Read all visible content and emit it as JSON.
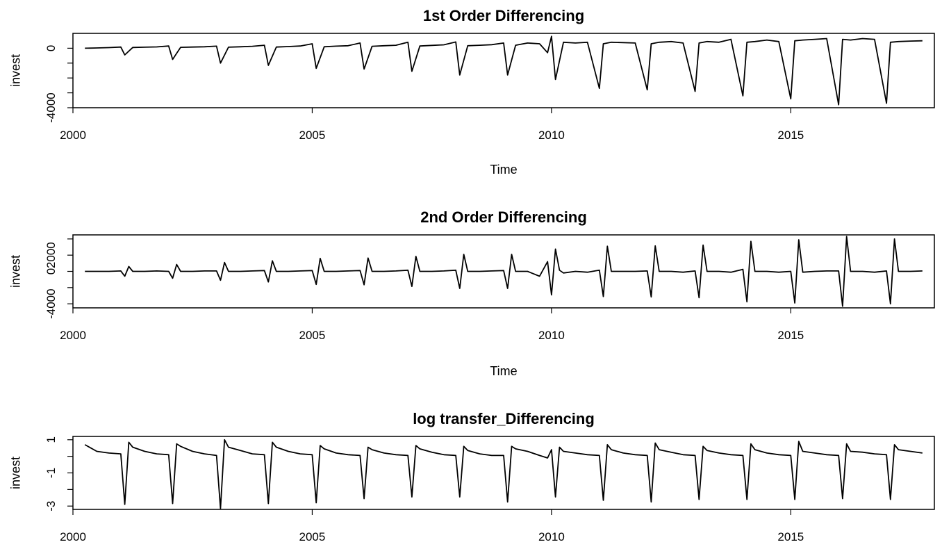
{
  "chart_data": [
    {
      "type": "line",
      "title": "1st Order Differencing",
      "xlabel": "Time",
      "ylabel": "invest",
      "xlim": [
        2000,
        2018
      ],
      "ylim": [
        -4000,
        1000
      ],
      "xticks": [
        2000,
        2005,
        2010,
        2015
      ],
      "xtick_labels": [
        "2000",
        "2005",
        "2010",
        "2015"
      ],
      "yticks": [
        -4000,
        -3000,
        -2000,
        -1000,
        0
      ],
      "ytick_labels": [
        "-4000",
        "",
        "",
        "",
        "0"
      ],
      "x": [
        2000.25,
        2000.5,
        2000.75,
        2001.0,
        2001.083,
        2001.25,
        2001.5,
        2001.75,
        2002.0,
        2002.083,
        2002.25,
        2002.5,
        2002.75,
        2003.0,
        2003.083,
        2003.25,
        2003.5,
        2003.75,
        2004.0,
        2004.083,
        2004.25,
        2004.5,
        2004.75,
        2005.0,
        2005.083,
        2005.25,
        2005.5,
        2005.75,
        2006.0,
        2006.083,
        2006.25,
        2006.5,
        2006.75,
        2007.0,
        2007.083,
        2007.25,
        2007.5,
        2007.75,
        2008.0,
        2008.083,
        2008.25,
        2008.5,
        2008.75,
        2009.0,
        2009.083,
        2009.25,
        2009.5,
        2009.75,
        2009.917,
        2010.0,
        2010.083,
        2010.25,
        2010.5,
        2010.75,
        2011.0,
        2011.083,
        2011.25,
        2011.5,
        2011.75,
        2012.0,
        2012.083,
        2012.25,
        2012.5,
        2012.75,
        2013.0,
        2013.083,
        2013.25,
        2013.5,
        2013.75,
        2014.0,
        2014.083,
        2014.25,
        2014.5,
        2014.75,
        2015.0,
        2015.083,
        2015.25,
        2015.5,
        2015.75,
        2016.0,
        2016.083,
        2016.25,
        2016.5,
        2016.75,
        2017.0,
        2017.083,
        2017.25,
        2017.5,
        2017.75
      ],
      "y": [
        0,
        20,
        40,
        80,
        -450,
        50,
        70,
        90,
        150,
        -750,
        60,
        80,
        100,
        140,
        -1000,
        70,
        100,
        130,
        200,
        -1150,
        80,
        110,
        150,
        300,
        -1350,
        100,
        140,
        170,
        350,
        -1400,
        130,
        170,
        200,
        400,
        -1550,
        150,
        190,
        230,
        420,
        -1800,
        170,
        200,
        240,
        350,
        -1800,
        200,
        350,
        300,
        -300,
        800,
        -2100,
        400,
        350,
        400,
        -2700,
        300,
        400,
        380,
        350,
        -2800,
        300,
        400,
        450,
        350,
        -2900,
        350,
        450,
        400,
        600,
        -3200,
        400,
        450,
        550,
        450,
        -3400,
        500,
        550,
        600,
        650,
        -3800,
        600,
        550,
        650,
        600,
        -3700,
        400,
        450,
        480,
        500
      ]
    },
    {
      "type": "line",
      "title": "2nd Order Differencing",
      "xlabel": "Time",
      "ylabel": "invest",
      "xlim": [
        2000,
        2018
      ],
      "ylim": [
        -4500,
        4500
      ],
      "xticks": [
        2000,
        2005,
        2010,
        2015
      ],
      "xtick_labels": [
        "2000",
        "2005",
        "2010",
        "2015"
      ],
      "yticks": [
        -4000,
        -2000,
        0,
        2000,
        4000
      ],
      "ytick_labels": [
        "-4000",
        "",
        "0",
        "2000",
        ""
      ],
      "x": [
        2000.25,
        2000.5,
        2000.75,
        2001.0,
        2001.083,
        2001.167,
        2001.25,
        2001.5,
        2001.75,
        2002.0,
        2002.083,
        2002.167,
        2002.25,
        2002.5,
        2002.75,
        2003.0,
        2003.083,
        2003.167,
        2003.25,
        2003.5,
        2003.75,
        2004.0,
        2004.083,
        2004.167,
        2004.25,
        2004.5,
        2004.75,
        2005.0,
        2005.083,
        2005.167,
        2005.25,
        2005.5,
        2005.75,
        2006.0,
        2006.083,
        2006.167,
        2006.25,
        2006.5,
        2006.75,
        2007.0,
        2007.083,
        2007.167,
        2007.25,
        2007.5,
        2007.75,
        2008.0,
        2008.083,
        2008.167,
        2008.25,
        2008.5,
        2008.75,
        2009.0,
        2009.083,
        2009.167,
        2009.25,
        2009.5,
        2009.75,
        2009.917,
        2010.0,
        2010.083,
        2010.167,
        2010.25,
        2010.5,
        2010.75,
        2011.0,
        2011.083,
        2011.167,
        2011.25,
        2011.5,
        2011.75,
        2012.0,
        2012.083,
        2012.167,
        2012.25,
        2012.5,
        2012.75,
        2013.0,
        2013.083,
        2013.167,
        2013.25,
        2013.5,
        2013.75,
        2014.0,
        2014.083,
        2014.167,
        2014.25,
        2014.5,
        2014.75,
        2015.0,
        2015.083,
        2015.167,
        2015.25,
        2015.5,
        2015.75,
        2016.0,
        2016.083,
        2016.167,
        2016.25,
        2016.5,
        2016.75,
        2017.0,
        2017.083,
        2017.167,
        2017.25,
        2017.5,
        2017.75
      ],
      "y": [
        0,
        0,
        0,
        50,
        -600,
        600,
        0,
        0,
        50,
        0,
        -850,
        850,
        0,
        0,
        50,
        50,
        -1100,
        1100,
        0,
        0,
        50,
        100,
        -1300,
        1300,
        0,
        0,
        50,
        100,
        -1600,
        1600,
        0,
        0,
        50,
        100,
        -1650,
        1650,
        0,
        0,
        50,
        150,
        -1850,
        1850,
        0,
        0,
        50,
        150,
        -2100,
        2100,
        0,
        0,
        50,
        100,
        -2100,
        2100,
        0,
        0,
        -600,
        1200,
        -2900,
        2750,
        150,
        -200,
        0,
        -100,
        150,
        -3100,
        3100,
        0,
        0,
        0,
        50,
        -3150,
        3150,
        0,
        0,
        -100,
        50,
        -3250,
        3250,
        0,
        0,
        -100,
        250,
        -3750,
        3700,
        0,
        0,
        -100,
        0,
        -3900,
        3900,
        -100,
        0,
        50,
        50,
        -4300,
        4300,
        0,
        0,
        -100,
        50,
        -4000,
        4000,
        0,
        0,
        50
      ]
    },
    {
      "type": "line",
      "title": "log transfer_Differencing",
      "xlabel": "",
      "ylabel": "invest",
      "xlim": [
        2000,
        2018
      ],
      "ylim": [
        -3.2,
        1.2
      ],
      "xticks": [
        2000,
        2005,
        2010,
        2015
      ],
      "xtick_labels": [
        "2000",
        "2005",
        "2010",
        "2015"
      ],
      "yticks": [
        -3,
        -2,
        -1,
        0,
        1
      ],
      "ytick_labels": [
        "-3",
        "",
        "-1",
        "",
        "1"
      ],
      "x": [
        2000.25,
        2000.5,
        2000.75,
        2001.0,
        2001.083,
        2001.167,
        2001.25,
        2001.5,
        2001.75,
        2002.0,
        2002.083,
        2002.167,
        2002.25,
        2002.5,
        2002.75,
        2003.0,
        2003.083,
        2003.167,
        2003.25,
        2003.5,
        2003.75,
        2004.0,
        2004.083,
        2004.167,
        2004.25,
        2004.5,
        2004.75,
        2005.0,
        2005.083,
        2005.167,
        2005.25,
        2005.5,
        2005.75,
        2006.0,
        2006.083,
        2006.167,
        2006.25,
        2006.5,
        2006.75,
        2007.0,
        2007.083,
        2007.167,
        2007.25,
        2007.5,
        2007.75,
        2008.0,
        2008.083,
        2008.167,
        2008.25,
        2008.5,
        2008.75,
        2009.0,
        2009.083,
        2009.167,
        2009.25,
        2009.5,
        2009.75,
        2009.917,
        2010.0,
        2010.083,
        2010.167,
        2010.25,
        2010.5,
        2010.75,
        2011.0,
        2011.083,
        2011.167,
        2011.25,
        2011.5,
        2011.75,
        2012.0,
        2012.083,
        2012.167,
        2012.25,
        2012.5,
        2012.75,
        2013.0,
        2013.083,
        2013.167,
        2013.25,
        2013.5,
        2013.75,
        2014.0,
        2014.083,
        2014.167,
        2014.25,
        2014.5,
        2014.75,
        2015.0,
        2015.083,
        2015.167,
        2015.25,
        2015.5,
        2015.75,
        2016.0,
        2016.083,
        2016.167,
        2016.25,
        2016.5,
        2016.75,
        2017.0,
        2017.083,
        2017.167,
        2017.25,
        2017.5,
        2017.75
      ],
      "y": [
        0.7,
        0.3,
        0.2,
        0.15,
        -2.9,
        0.85,
        0.55,
        0.3,
        0.15,
        0.1,
        -2.85,
        0.75,
        0.6,
        0.3,
        0.15,
        0.05,
        -3.15,
        1.0,
        0.55,
        0.35,
        0.15,
        0.1,
        -2.85,
        0.85,
        0.55,
        0.3,
        0.15,
        0.1,
        -2.8,
        0.65,
        0.45,
        0.2,
        0.1,
        0.05,
        -2.55,
        0.55,
        0.4,
        0.2,
        0.1,
        0.05,
        -2.45,
        0.65,
        0.45,
        0.25,
        0.1,
        0.05,
        -2.45,
        0.6,
        0.35,
        0.15,
        0.05,
        0.05,
        -2.75,
        0.6,
        0.45,
        0.3,
        0.05,
        -0.1,
        0.4,
        -2.45,
        0.55,
        0.3,
        0.2,
        0.1,
        0.05,
        -2.65,
        0.7,
        0.4,
        0.2,
        0.1,
        0.05,
        -2.75,
        0.8,
        0.4,
        0.25,
        0.1,
        0.05,
        -2.6,
        0.6,
        0.35,
        0.2,
        0.1,
        0.05,
        -2.6,
        0.75,
        0.4,
        0.2,
        0.1,
        0.05,
        -2.6,
        0.9,
        0.3,
        0.2,
        0.1,
        0.05,
        -2.55,
        0.75,
        0.3,
        0.25,
        0.15,
        0.1,
        -2.6,
        0.7,
        0.4,
        0.3,
        0.2
      ]
    }
  ]
}
